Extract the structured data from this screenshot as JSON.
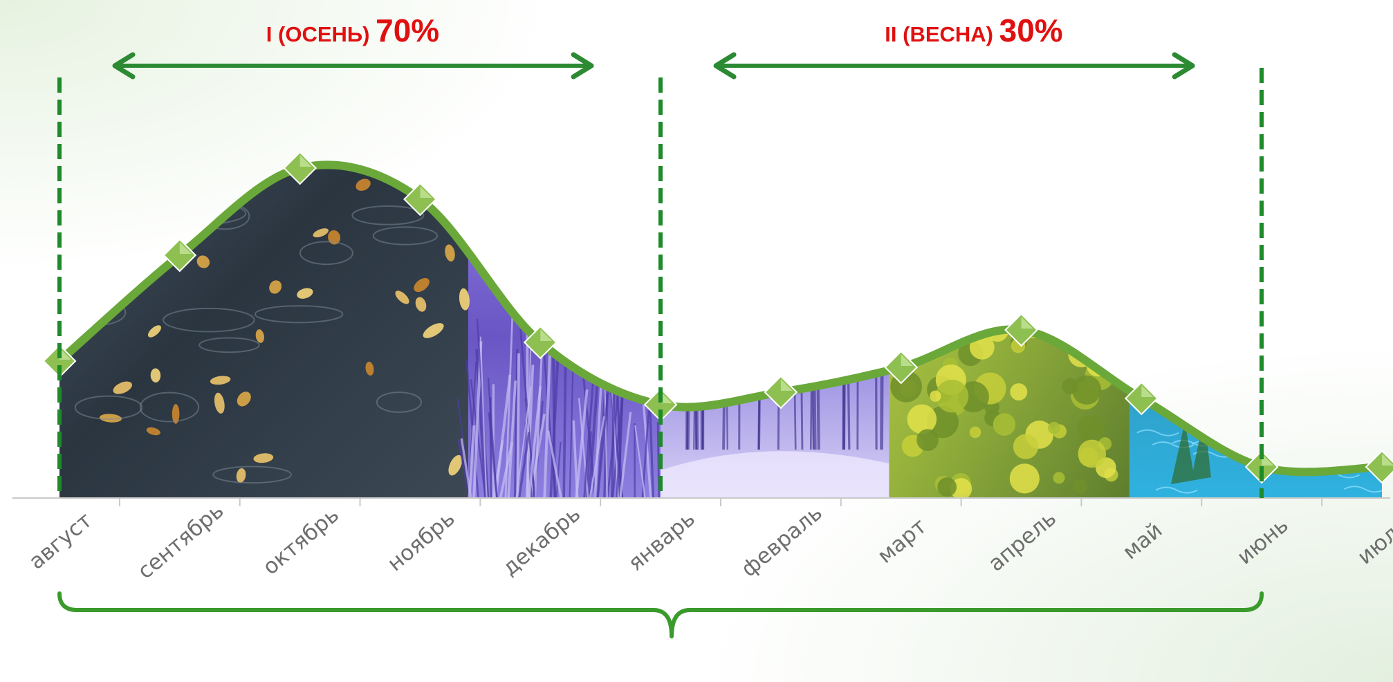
{
  "chart_data": {
    "type": "area",
    "title": "",
    "xlabel": "",
    "ylabel": "",
    "categories": [
      "август",
      "сентябрь",
      "октябрь",
      "ноябрь",
      "декабрь",
      "январь",
      "февраль",
      "март",
      "апрель",
      "май",
      "июнь",
      "июль"
    ],
    "series": [
      {
        "values": [
          22,
          39,
          53,
          48,
          25,
          15,
          17,
          21,
          27,
          16,
          5,
          5
        ]
      }
    ],
    "ylim": [
      0,
      60
    ],
    "grid": false,
    "legend": "none",
    "periods": [
      {
        "name_label": "I (ОСЕНЬ)",
        "share_label": "70%",
        "from": "август",
        "to": "январь"
      },
      {
        "name_label": "II (ВЕСНА)",
        "share_label": "30%",
        "from": "январь",
        "to": "июнь"
      }
    ],
    "segments": [
      {
        "scene": "autumn-rain-stream",
        "from": 0,
        "to": 3.4,
        "color": "#2d3a47"
      },
      {
        "scene": "winter-frost-grass",
        "from": 3.4,
        "to": 5,
        "color": "#7463c7"
      },
      {
        "scene": "winter-snow-forest",
        "from": 5,
        "to": 6.9,
        "color": "#7a6fd1"
      },
      {
        "scene": "spring-yellow-tree",
        "from": 6.9,
        "to": 8.9,
        "color": "#9bb84a"
      },
      {
        "scene": "summer-blue-water",
        "from": 8.9,
        "to": 11,
        "color": "#2a8fc2"
      }
    ],
    "colors": {
      "curve": "#6aa83a",
      "marker": "#8dc050",
      "divider": "#1e8a2a",
      "arrow": "#2c8a33",
      "brace": "#3b9a2c",
      "label": "#e01010"
    }
  }
}
